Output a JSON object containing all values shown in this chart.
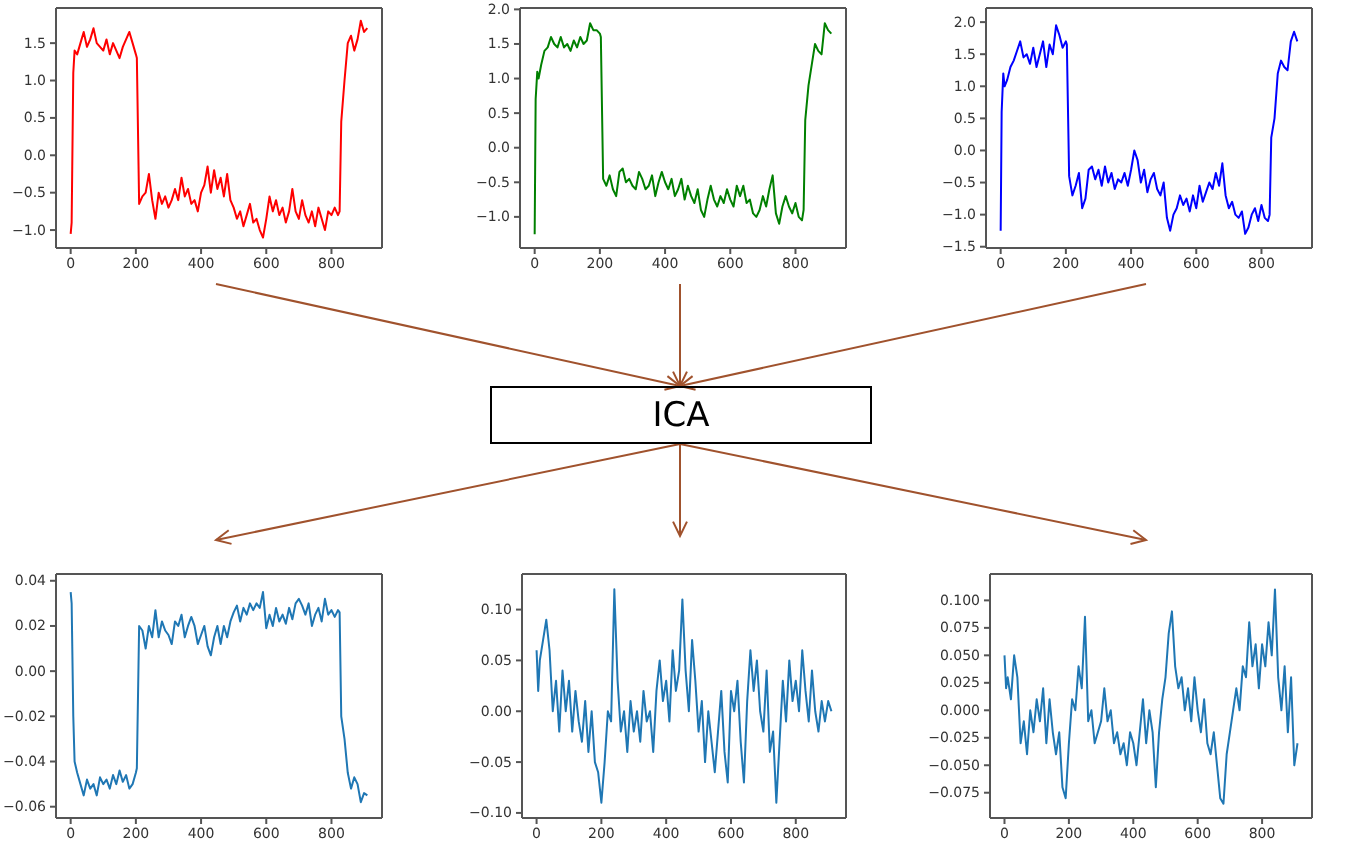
{
  "chart_data": [
    {
      "type": "line",
      "x": [
        0,
        3,
        8,
        12,
        20,
        30,
        40,
        50,
        60,
        70,
        80,
        90,
        100,
        110,
        120,
        130,
        140,
        150,
        160,
        170,
        180,
        190,
        200,
        203,
        210,
        220,
        230,
        240,
        250,
        260,
        270,
        280,
        290,
        300,
        310,
        320,
        330,
        340,
        350,
        360,
        370,
        380,
        390,
        400,
        410,
        420,
        430,
        440,
        450,
        460,
        470,
        480,
        490,
        500,
        510,
        520,
        530,
        540,
        550,
        560,
        570,
        580,
        590,
        600,
        610,
        620,
        630,
        640,
        650,
        660,
        670,
        680,
        690,
        700,
        710,
        720,
        730,
        740,
        750,
        760,
        770,
        780,
        790,
        800,
        810,
        820,
        825,
        830,
        840,
        850,
        860,
        870,
        880,
        890,
        900,
        910
      ],
      "series": [
        {
          "color": "#ff0000",
          "values": [
            -1.05,
            -0.9,
            1.1,
            1.4,
            1.35,
            1.5,
            1.65,
            1.45,
            1.55,
            1.7,
            1.5,
            1.45,
            1.4,
            1.55,
            1.35,
            1.5,
            1.4,
            1.3,
            1.45,
            1.55,
            1.65,
            1.5,
            1.35,
            1.3,
            -0.65,
            -0.55,
            -0.5,
            -0.25,
            -0.6,
            -0.85,
            -0.5,
            -0.65,
            -0.55,
            -0.7,
            -0.6,
            -0.45,
            -0.6,
            -0.3,
            -0.55,
            -0.45,
            -0.65,
            -0.6,
            -0.75,
            -0.5,
            -0.4,
            -0.15,
            -0.5,
            -0.2,
            -0.45,
            -0.3,
            -0.55,
            -0.25,
            -0.6,
            -0.7,
            -0.85,
            -0.75,
            -0.95,
            -0.8,
            -0.65,
            -0.9,
            -0.85,
            -1.0,
            -1.1,
            -0.85,
            -0.55,
            -0.75,
            -0.6,
            -0.8,
            -0.7,
            -0.9,
            -0.75,
            -0.45,
            -0.75,
            -0.85,
            -0.6,
            -0.8,
            -0.9,
            -0.75,
            -0.95,
            -0.7,
            -0.85,
            -1.0,
            -0.75,
            -0.8,
            -0.7,
            -0.8,
            -0.75,
            0.45,
            1.0,
            1.5,
            1.6,
            1.4,
            1.55,
            1.8,
            1.65,
            1.7
          ]
        }
      ],
      "xlim": [
        -45,
        955
      ],
      "xticks": [
        0,
        200,
        400,
        600,
        800
      ],
      "ylim": [
        -1.24,
        1.97
      ],
      "yticks": [
        {
          "value": -1,
          "label": "−1.0"
        },
        -0.5,
        {
          "value": 0,
          "label": "0.0"
        },
        0.5,
        {
          "value": 1,
          "label": "1.0"
        },
        1.5
      ]
    },
    {
      "type": "line",
      "x": [
        0,
        3,
        8,
        12,
        20,
        30,
        40,
        50,
        60,
        70,
        80,
        90,
        100,
        110,
        120,
        130,
        140,
        150,
        160,
        170,
        180,
        190,
        200,
        203,
        210,
        220,
        230,
        240,
        250,
        260,
        270,
        280,
        290,
        300,
        310,
        320,
        330,
        340,
        350,
        360,
        370,
        380,
        390,
        400,
        410,
        420,
        430,
        440,
        450,
        460,
        470,
        480,
        490,
        500,
        510,
        520,
        530,
        540,
        550,
        560,
        570,
        580,
        590,
        600,
        610,
        620,
        630,
        640,
        650,
        660,
        670,
        680,
        690,
        700,
        710,
        720,
        730,
        740,
        750,
        760,
        770,
        780,
        790,
        800,
        810,
        820,
        825,
        830,
        840,
        850,
        860,
        870,
        880,
        890,
        900,
        910
      ],
      "series": [
        {
          "color": "#008000",
          "values": [
            -1.25,
            0.7,
            1.1,
            1.0,
            1.2,
            1.4,
            1.45,
            1.6,
            1.5,
            1.45,
            1.6,
            1.45,
            1.5,
            1.4,
            1.55,
            1.45,
            1.6,
            1.5,
            1.55,
            1.8,
            1.7,
            1.7,
            1.65,
            1.6,
            -0.45,
            -0.55,
            -0.4,
            -0.6,
            -0.7,
            -0.35,
            -0.3,
            -0.5,
            -0.45,
            -0.55,
            -0.6,
            -0.35,
            -0.45,
            -0.6,
            -0.55,
            -0.4,
            -0.7,
            -0.5,
            -0.35,
            -0.5,
            -0.6,
            -0.45,
            -0.7,
            -0.6,
            -0.45,
            -0.75,
            -0.55,
            -0.7,
            -0.8,
            -0.6,
            -0.9,
            -1.0,
            -0.75,
            -0.55,
            -0.75,
            -0.85,
            -0.7,
            -0.8,
            -0.6,
            -0.75,
            -0.85,
            -0.55,
            -0.7,
            -0.55,
            -0.8,
            -0.75,
            -0.95,
            -1.0,
            -0.9,
            -0.7,
            -0.85,
            -0.6,
            -0.4,
            -0.95,
            -1.1,
            -0.85,
            -0.7,
            -0.85,
            -0.95,
            -0.8,
            -1.0,
            -1.05,
            -0.9,
            0.4,
            0.9,
            1.2,
            1.5,
            1.4,
            1.35,
            1.8,
            1.7,
            1.65
          ]
        }
      ],
      "xlim": [
        -45,
        955
      ],
      "xticks": [
        0,
        200,
        400,
        600,
        800
      ],
      "ylim": [
        -1.45,
        2.02
      ],
      "yticks": [
        {
          "value": -1,
          "label": "−1.0"
        },
        -0.5,
        {
          "value": 0,
          "label": "0.0"
        },
        0.5,
        {
          "value": 1,
          "label": "1.0"
        },
        1.5,
        {
          "value": 2,
          "label": "2.0"
        }
      ]
    },
    {
      "type": "line",
      "x": [
        0,
        3,
        8,
        12,
        20,
        30,
        40,
        50,
        60,
        70,
        80,
        90,
        100,
        110,
        120,
        130,
        140,
        150,
        160,
        170,
        180,
        190,
        200,
        203,
        210,
        220,
        230,
        240,
        250,
        260,
        270,
        280,
        290,
        300,
        310,
        320,
        330,
        340,
        350,
        360,
        370,
        380,
        390,
        400,
        410,
        420,
        430,
        440,
        450,
        460,
        470,
        480,
        490,
        500,
        510,
        520,
        530,
        540,
        550,
        560,
        570,
        580,
        590,
        600,
        610,
        620,
        630,
        640,
        650,
        660,
        670,
        680,
        690,
        700,
        710,
        720,
        730,
        740,
        750,
        760,
        770,
        780,
        790,
        800,
        810,
        820,
        825,
        830,
        840,
        850,
        860,
        870,
        880,
        890,
        900,
        910
      ],
      "series": [
        {
          "color": "#0000ff",
          "values": [
            -1.25,
            0.6,
            1.2,
            1.0,
            1.1,
            1.3,
            1.4,
            1.55,
            1.7,
            1.45,
            1.5,
            1.35,
            1.6,
            1.3,
            1.5,
            1.7,
            1.3,
            1.65,
            1.5,
            1.95,
            1.8,
            1.6,
            1.7,
            1.65,
            -0.4,
            -0.7,
            -0.55,
            -0.35,
            -0.9,
            -0.75,
            -0.3,
            -0.25,
            -0.45,
            -0.3,
            -0.55,
            -0.25,
            -0.5,
            -0.35,
            -0.6,
            -0.45,
            -0.5,
            -0.35,
            -0.55,
            -0.3,
            0.0,
            -0.15,
            -0.5,
            -0.3,
            -0.65,
            -0.45,
            -0.35,
            -0.6,
            -0.7,
            -0.5,
            -1.05,
            -1.25,
            -1.0,
            -0.9,
            -0.7,
            -0.85,
            -0.75,
            -0.95,
            -0.7,
            -0.9,
            -0.55,
            -0.8,
            -0.65,
            -0.5,
            -0.6,
            -0.35,
            -0.55,
            -0.2,
            -0.7,
            -0.9,
            -0.8,
            -1.0,
            -1.05,
            -0.95,
            -1.3,
            -1.2,
            -1.0,
            -0.9,
            -1.1,
            -0.85,
            -1.05,
            -1.1,
            -1.0,
            0.2,
            0.5,
            1.2,
            1.4,
            1.3,
            1.25,
            1.7,
            1.85,
            1.7
          ]
        }
      ],
      "xlim": [
        -45,
        955
      ],
      "xticks": [
        0,
        200,
        400,
        600,
        800
      ],
      "ylim": [
        -1.52,
        2.22
      ],
      "yticks": [
        -1.5,
        {
          "value": -1,
          "label": "−1.0"
        },
        -0.5,
        {
          "value": 0,
          "label": "0.0"
        },
        0.5,
        {
          "value": 1,
          "label": "1.0"
        },
        1.5,
        {
          "value": 2,
          "label": "2.0"
        }
      ]
    },
    {
      "type": "other",
      "title": "ICA"
    },
    {
      "type": "line",
      "x": [
        0,
        3,
        8,
        12,
        20,
        30,
        40,
        50,
        60,
        70,
        80,
        90,
        100,
        110,
        120,
        130,
        140,
        150,
        160,
        170,
        180,
        190,
        200,
        203,
        210,
        220,
        230,
        240,
        250,
        260,
        270,
        280,
        290,
        300,
        310,
        320,
        330,
        340,
        350,
        360,
        370,
        380,
        390,
        400,
        410,
        420,
        430,
        440,
        450,
        460,
        470,
        480,
        490,
        500,
        510,
        520,
        530,
        540,
        550,
        560,
        570,
        580,
        590,
        600,
        610,
        620,
        630,
        640,
        650,
        660,
        670,
        680,
        690,
        700,
        710,
        720,
        730,
        740,
        750,
        760,
        770,
        780,
        790,
        800,
        810,
        820,
        825,
        830,
        840,
        850,
        860,
        870,
        880,
        890,
        900,
        910
      ],
      "series": [
        {
          "color": "#1f77b4",
          "values": [
            0.035,
            0.03,
            -0.02,
            -0.04,
            -0.045,
            -0.05,
            -0.055,
            -0.048,
            -0.052,
            -0.05,
            -0.055,
            -0.047,
            -0.05,
            -0.048,
            -0.052,
            -0.046,
            -0.05,
            -0.044,
            -0.049,
            -0.046,
            -0.052,
            -0.05,
            -0.045,
            -0.043,
            0.02,
            0.018,
            0.01,
            0.02,
            0.015,
            0.027,
            0.015,
            0.022,
            0.018,
            0.016,
            0.012,
            0.022,
            0.02,
            0.025,
            0.015,
            0.02,
            0.024,
            0.02,
            0.012,
            0.016,
            0.02,
            0.011,
            0.007,
            0.015,
            0.02,
            0.012,
            0.02,
            0.015,
            0.022,
            0.026,
            0.029,
            0.022,
            0.028,
            0.025,
            0.03,
            0.027,
            0.03,
            0.028,
            0.035,
            0.019,
            0.025,
            0.02,
            0.028,
            0.022,
            0.025,
            0.021,
            0.028,
            0.023,
            0.03,
            0.032,
            0.029,
            0.025,
            0.03,
            0.02,
            0.025,
            0.028,
            0.022,
            0.032,
            0.025,
            0.027,
            0.024,
            0.027,
            0.026,
            -0.02,
            -0.03,
            -0.045,
            -0.052,
            -0.047,
            -0.05,
            -0.058,
            -0.054,
            -0.055
          ]
        }
      ],
      "xlim": [
        -45,
        955
      ],
      "xticks": [
        0,
        200,
        400,
        600,
        800
      ],
      "ylim": [
        -0.065,
        0.043
      ],
      "yticks": [
        -0.06,
        -0.04,
        -0.02,
        {
          "value": 0,
          "label": "0.00"
        },
        0.02,
        0.04
      ]
    },
    {
      "type": "line",
      "x": [
        0,
        5,
        10,
        20,
        30,
        40,
        50,
        60,
        70,
        80,
        90,
        100,
        110,
        120,
        130,
        140,
        150,
        160,
        170,
        180,
        190,
        200,
        210,
        220,
        230,
        240,
        250,
        260,
        270,
        280,
        290,
        300,
        310,
        320,
        330,
        340,
        350,
        360,
        370,
        380,
        390,
        400,
        410,
        420,
        430,
        440,
        450,
        460,
        470,
        480,
        490,
        500,
        510,
        520,
        530,
        540,
        550,
        560,
        570,
        580,
        590,
        600,
        610,
        620,
        630,
        640,
        650,
        660,
        670,
        680,
        690,
        700,
        710,
        720,
        730,
        740,
        750,
        760,
        770,
        780,
        790,
        800,
        810,
        820,
        830,
        840,
        850,
        860,
        870,
        880,
        890,
        900,
        910
      ],
      "series": [
        {
          "color": "#1f77b4",
          "values": [
            0.06,
            0.02,
            0.05,
            0.07,
            0.09,
            0.06,
            0.0,
            0.03,
            -0.02,
            0.04,
            0.0,
            0.03,
            -0.02,
            0.02,
            -0.01,
            -0.03,
            0.01,
            -0.04,
            0.0,
            -0.05,
            -0.06,
            -0.09,
            -0.05,
            0.0,
            -0.01,
            0.12,
            0.03,
            -0.02,
            0.0,
            -0.04,
            0.01,
            -0.02,
            0.0,
            -0.03,
            0.02,
            -0.01,
            0.0,
            -0.04,
            0.02,
            0.05,
            0.01,
            0.03,
            -0.01,
            0.06,
            0.02,
            0.04,
            0.11,
            0.04,
            0.0,
            0.07,
            0.03,
            -0.02,
            0.01,
            -0.05,
            0.0,
            -0.03,
            -0.06,
            -0.02,
            0.02,
            -0.04,
            -0.07,
            0.02,
            0.0,
            0.03,
            -0.03,
            -0.07,
            0.01,
            0.06,
            0.02,
            0.05,
            0.0,
            -0.02,
            0.04,
            -0.04,
            -0.02,
            -0.09,
            -0.03,
            0.03,
            -0.01,
            0.05,
            0.01,
            0.03,
            0.0,
            0.06,
            0.02,
            -0.01,
            0.04,
            0.0,
            -0.02,
            0.01,
            -0.01,
            0.01,
            0.0
          ]
        }
      ],
      "xlim": [
        -45,
        955
      ],
      "xticks": [
        0,
        200,
        400,
        600,
        800
      ],
      "ylim": [
        -0.105,
        0.135
      ],
      "yticks": [
        {
          "value": -0.1,
          "label": "−0.10"
        },
        -0.05,
        {
          "value": 0,
          "label": "0.00"
        },
        0.05,
        {
          "value": 0.1,
          "label": "0.10"
        }
      ]
    },
    {
      "type": "line",
      "x": [
        0,
        5,
        10,
        20,
        30,
        40,
        50,
        60,
        70,
        80,
        90,
        100,
        110,
        120,
        130,
        140,
        150,
        160,
        170,
        180,
        190,
        200,
        210,
        220,
        230,
        240,
        250,
        260,
        270,
        280,
        290,
        300,
        310,
        320,
        330,
        340,
        350,
        360,
        370,
        380,
        390,
        400,
        410,
        420,
        430,
        440,
        450,
        460,
        470,
        480,
        490,
        500,
        510,
        520,
        530,
        540,
        550,
        560,
        570,
        580,
        590,
        600,
        610,
        620,
        630,
        640,
        650,
        660,
        670,
        680,
        690,
        700,
        710,
        720,
        730,
        740,
        750,
        760,
        770,
        780,
        790,
        800,
        810,
        820,
        830,
        840,
        850,
        860,
        870,
        880,
        890,
        900,
        910
      ],
      "series": [
        {
          "color": "#1f77b4",
          "values": [
            0.05,
            0.02,
            0.03,
            0.01,
            0.05,
            0.03,
            -0.03,
            -0.01,
            -0.04,
            0.0,
            -0.02,
            0.01,
            -0.01,
            0.02,
            -0.03,
            0.01,
            -0.02,
            -0.04,
            -0.02,
            -0.07,
            -0.08,
            -0.03,
            0.01,
            0.0,
            0.04,
            0.02,
            0.085,
            -0.01,
            0.0,
            -0.03,
            -0.02,
            -0.01,
            0.02,
            -0.01,
            0.0,
            -0.03,
            -0.02,
            -0.04,
            -0.03,
            -0.05,
            -0.02,
            -0.03,
            -0.05,
            -0.02,
            0.01,
            -0.03,
            0.0,
            -0.02,
            -0.07,
            -0.02,
            0.01,
            0.03,
            0.07,
            0.09,
            0.04,
            0.02,
            0.03,
            0.0,
            0.02,
            -0.01,
            0.03,
            0.0,
            -0.02,
            0.01,
            -0.03,
            -0.04,
            -0.02,
            -0.05,
            -0.08,
            -0.085,
            -0.04,
            -0.02,
            0.0,
            0.02,
            0.0,
            0.04,
            0.03,
            0.08,
            0.04,
            0.06,
            0.02,
            0.06,
            0.04,
            0.08,
            0.05,
            0.11,
            0.03,
            0.0,
            0.04,
            -0.02,
            0.03,
            -0.05,
            -0.03
          ]
        }
      ],
      "xlim": [
        -45,
        955
      ],
      "xticks": [
        0,
        200,
        400,
        600,
        800
      ],
      "ylim": [
        -0.098,
        0.124
      ],
      "yticks": [
        -0.075,
        {
          "value": -0.05,
          "label": "−0.050"
        },
        -0.025,
        {
          "value": 0,
          "label": "0.000"
        },
        0.025,
        {
          "value": 0.05,
          "label": "0.050"
        },
        0.075,
        {
          "value": 0.1,
          "label": "0.100"
        }
      ]
    }
  ]
}
